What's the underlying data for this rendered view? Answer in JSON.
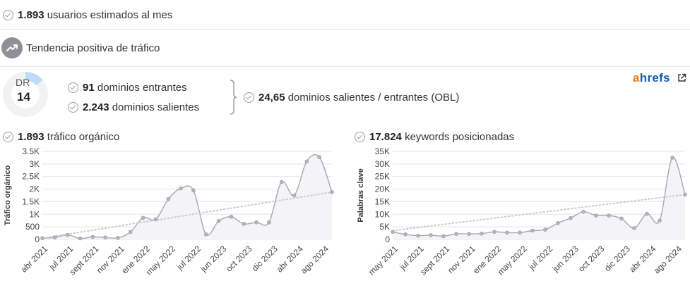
{
  "summary": {
    "users_value": "1.893",
    "users_label": "usuarios estimados al mes",
    "trend_label": "Tendencia positiva de tráfico"
  },
  "dr": {
    "label": "DR",
    "value": "14",
    "score": 14
  },
  "links": {
    "inbound_value": "91",
    "inbound_label": "dominios entrantes",
    "outbound_value": "2.243",
    "outbound_label": "dominios salientes",
    "ratio_value": "24,65",
    "ratio_label": "dominios salientes / entrantes (OBL)"
  },
  "brand": {
    "a": "a",
    "rest": "hrefs",
    "accent": "#f2771d",
    "primary": "#1a5ca8",
    "icon": "external-link-icon"
  },
  "chart_data": [
    {
      "type": "line",
      "header_value": "1.893",
      "header_label": "tráfico orgánico",
      "ylabel": "Tráfico orgánico",
      "ylim": [
        0,
        3500
      ],
      "yticks": [
        0,
        500,
        1000,
        1500,
        2000,
        2500,
        3000,
        3500
      ],
      "ytick_labels": [
        "0",
        "500",
        "1K",
        "1.5K",
        "2K",
        "2.5K",
        "3K",
        "3.5K"
      ],
      "xtick_labels": [
        "abr 2021",
        "jul 2021",
        "sept 2021",
        "nov 2021",
        "ene 2022",
        "may 2022",
        "jul 2022",
        "jun 2023",
        "oct 2023",
        "dic 2023",
        "abr 2024",
        "ago 2024"
      ],
      "values": [
        50,
        80,
        180,
        40,
        100,
        80,
        60,
        300,
        860,
        800,
        1600,
        2030,
        1950,
        200,
        730,
        900,
        620,
        680,
        680,
        2280,
        1750,
        3100,
        3270,
        1880
      ],
      "trend": [
        50,
        1880
      ],
      "grid": "horizontal"
    },
    {
      "type": "line",
      "header_value": "17.824",
      "header_label": "keywords posicionadas",
      "ylabel": "Palabras clave",
      "ylim": [
        0,
        35000
      ],
      "yticks": [
        0,
        5000,
        10000,
        15000,
        20000,
        25000,
        30000,
        35000
      ],
      "ytick_labels": [
        "0",
        "5K",
        "10K",
        "15K",
        "20K",
        "25K",
        "30K",
        "35K"
      ],
      "xtick_labels": [
        "may 2021",
        "jul 2021",
        "sept 2021",
        "nov 2021",
        "ene 2022",
        "may 2022",
        "jul 2022",
        "jun 2023",
        "oct 2023",
        "dic 2023",
        "abr 2024",
        "ago 2024"
      ],
      "values": [
        3000,
        2000,
        1500,
        1700,
        1300,
        2200,
        2200,
        2300,
        3000,
        2700,
        2700,
        3500,
        3900,
        6500,
        8500,
        11000,
        9500,
        9500,
        8300,
        4500,
        10200,
        7500,
        32500,
        17824
      ],
      "trend": [
        3500,
        17824
      ],
      "grid": "horizontal"
    }
  ]
}
